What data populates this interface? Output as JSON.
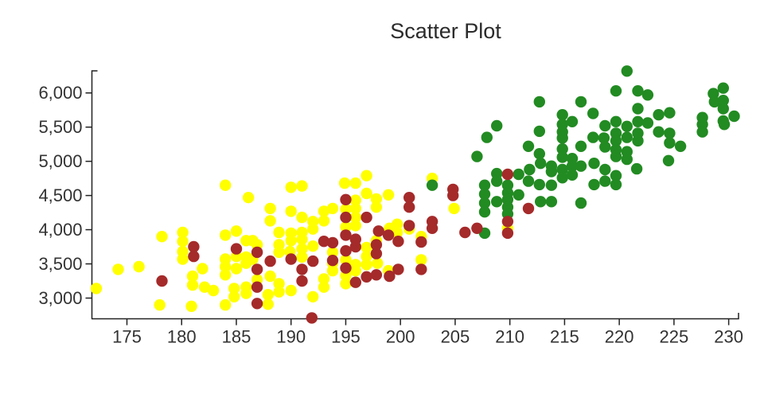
{
  "title": "Scatter Plot",
  "colors": {
    "yellow_series": "#ffff00",
    "brown_series": "#a52a2a",
    "green_series": "#228b22",
    "axis": "#222222",
    "text": "#333333"
  },
  "chart_data": {
    "type": "scatter",
    "title": "Scatter Plot",
    "xlabel": "",
    "ylabel": "",
    "grid": false,
    "legend": "none",
    "xlim": [
      171.8,
      230.9
    ],
    "ylim": [
      2697,
      6323
    ],
    "x_ticks": [
      175,
      180,
      185,
      190,
      195,
      200,
      205,
      210,
      215,
      220,
      225,
      230
    ],
    "y_ticks": [
      3000,
      3500,
      4000,
      4500,
      5000,
      5500,
      6000
    ],
    "y_tick_labels": [
      "3,000",
      "3,500",
      "4,000",
      "4,500",
      "5,000",
      "5,500",
      "6,000"
    ],
    "series": [
      {
        "name": "yellow",
        "color": "#ffff00",
        "points": [
          [
            172.2,
            3140
          ],
          [
            174.2,
            3420
          ],
          [
            176.1,
            3460
          ],
          [
            178.2,
            3900
          ],
          [
            178,
            2900
          ],
          [
            180.1,
            3960
          ],
          [
            180.1,
            3830
          ],
          [
            180.1,
            3680
          ],
          [
            180.1,
            3570
          ],
          [
            181,
            3320
          ],
          [
            181,
            3190
          ],
          [
            180.9,
            2880
          ],
          [
            181.9,
            3430
          ],
          [
            182.1,
            3160
          ],
          [
            182.9,
            3110
          ],
          [
            184,
            4650
          ],
          [
            184,
            3920
          ],
          [
            184,
            3570
          ],
          [
            184,
            3460
          ],
          [
            184,
            3340
          ],
          [
            184,
            2900
          ],
          [
            184.8,
            3140
          ],
          [
            184.8,
            3020
          ],
          [
            185,
            3980
          ],
          [
            185,
            3610
          ],
          [
            185,
            3430
          ],
          [
            185.9,
            3840
          ],
          [
            185.9,
            3600
          ],
          [
            185.9,
            3510
          ],
          [
            185.9,
            3160
          ],
          [
            185.9,
            3070
          ],
          [
            186.1,
            4470
          ],
          [
            186.5,
            3840
          ],
          [
            186.5,
            3570
          ],
          [
            186.9,
            3780
          ],
          [
            186.9,
            3270
          ],
          [
            187.9,
            3050
          ],
          [
            187.9,
            2910
          ],
          [
            188.1,
            4310
          ],
          [
            188.1,
            4130
          ],
          [
            188.1,
            3320
          ],
          [
            188.9,
            3960
          ],
          [
            188.9,
            3780
          ],
          [
            188.9,
            3670
          ],
          [
            188.9,
            3210
          ],
          [
            188.9,
            3090
          ],
          [
            189.9,
            3680
          ],
          [
            190,
            4620
          ],
          [
            190,
            4270
          ],
          [
            190,
            3950
          ],
          [
            190,
            3840
          ],
          [
            190,
            3110
          ],
          [
            191,
            4640
          ],
          [
            191,
            4180
          ],
          [
            191,
            3960
          ],
          [
            191,
            3860
          ],
          [
            191,
            3720
          ],
          [
            191,
            3600
          ],
          [
            192,
            4120
          ],
          [
            192,
            4010
          ],
          [
            192,
            3760
          ],
          [
            192,
            3020
          ],
          [
            193,
            4270
          ],
          [
            193,
            4130
          ],
          [
            193,
            3280
          ],
          [
            193,
            3160
          ],
          [
            193.8,
            4310
          ],
          [
            193.8,
            3670
          ],
          [
            193.8,
            3510
          ],
          [
            193.8,
            3400
          ],
          [
            194.9,
            4680
          ],
          [
            195,
            4300
          ],
          [
            195,
            4040
          ],
          [
            195,
            3560
          ],
          [
            195,
            3330
          ],
          [
            195,
            3210
          ],
          [
            195.9,
            4680
          ],
          [
            195.9,
            4430
          ],
          [
            195.9,
            4310
          ],
          [
            195.9,
            4180
          ],
          [
            195.9,
            4060
          ],
          [
            195.9,
            3490
          ],
          [
            195.9,
            3400
          ],
          [
            196.9,
            4790
          ],
          [
            196.9,
            4530
          ],
          [
            196.9,
            3740
          ],
          [
            196.9,
            3610
          ],
          [
            196.9,
            3490
          ],
          [
            197.8,
            4450
          ],
          [
            197.8,
            4330
          ],
          [
            197.8,
            3840
          ],
          [
            197.9,
            3510
          ],
          [
            198.9,
            4510
          ],
          [
            198.9,
            3400
          ],
          [
            199,
            4020
          ],
          [
            199.7,
            4080
          ],
          [
            199.7,
            3960
          ],
          [
            200.8,
            4010
          ],
          [
            201.9,
            3900
          ],
          [
            201.9,
            3560
          ],
          [
            202.9,
            4750
          ],
          [
            204.9,
            4310
          ],
          [
            209.8,
            4020
          ]
        ]
      },
      {
        "name": "green",
        "color": "#228b22",
        "points": [
          [
            202.9,
            4650
          ],
          [
            207,
            5070
          ],
          [
            207.7,
            4650
          ],
          [
            207.7,
            4520
          ],
          [
            207.7,
            4390
          ],
          [
            207.7,
            4260
          ],
          [
            207.7,
            3950
          ],
          [
            207.9,
            5350
          ],
          [
            208.8,
            5520
          ],
          [
            208.8,
            4820
          ],
          [
            208.8,
            4710
          ],
          [
            208.8,
            4410
          ],
          [
            209.8,
            4650
          ],
          [
            209.8,
            4540
          ],
          [
            209.8,
            4440
          ],
          [
            209.8,
            4330
          ],
          [
            209.8,
            4230
          ],
          [
            210.8,
            4810
          ],
          [
            210.8,
            4510
          ],
          [
            211.7,
            5220
          ],
          [
            211.8,
            4880
          ],
          [
            211.7,
            4710
          ],
          [
            212.7,
            5870
          ],
          [
            212.7,
            5440
          ],
          [
            212.7,
            5110
          ],
          [
            212.8,
            4970
          ],
          [
            212.7,
            4660
          ],
          [
            212.8,
            4410
          ],
          [
            213.8,
            4930
          ],
          [
            213.8,
            4850
          ],
          [
            213.8,
            4650
          ],
          [
            213.8,
            4410
          ],
          [
            214.8,
            5680
          ],
          [
            214.8,
            5540
          ],
          [
            214.8,
            5430
          ],
          [
            214.8,
            5340
          ],
          [
            214.8,
            5180
          ],
          [
            214.8,
            5060
          ],
          [
            214.8,
            4880
          ],
          [
            214.8,
            4760
          ],
          [
            215.7,
            5580
          ],
          [
            215.7,
            5040
          ],
          [
            215.7,
            4930
          ],
          [
            215.7,
            4800
          ],
          [
            216.5,
            5870
          ],
          [
            216.5,
            5220
          ],
          [
            216.5,
            4930
          ],
          [
            216.5,
            4390
          ],
          [
            217.6,
            5700
          ],
          [
            217.6,
            5350
          ],
          [
            217.7,
            4970
          ],
          [
            217.7,
            4660
          ],
          [
            218.7,
            5520
          ],
          [
            218.6,
            5340
          ],
          [
            218.7,
            5210
          ],
          [
            218.7,
            4880
          ],
          [
            218.7,
            4710
          ],
          [
            219.7,
            6030
          ],
          [
            219.7,
            5580
          ],
          [
            219.7,
            5410
          ],
          [
            219.7,
            5300
          ],
          [
            219.7,
            5170
          ],
          [
            219.7,
            5070
          ],
          [
            219.7,
            4790
          ],
          [
            219.7,
            4660
          ],
          [
            220.7,
            6320
          ],
          [
            220.7,
            5510
          ],
          [
            220.7,
            5350
          ],
          [
            220.7,
            5140
          ],
          [
            220.7,
            5030
          ],
          [
            221.6,
            4890
          ],
          [
            221.7,
            6030
          ],
          [
            221.7,
            5770
          ],
          [
            221.7,
            5580
          ],
          [
            221.7,
            5410
          ],
          [
            221.7,
            5300
          ],
          [
            222.6,
            5970
          ],
          [
            222.6,
            5560
          ],
          [
            223.6,
            5680
          ],
          [
            223.6,
            5430
          ],
          [
            224.6,
            5710
          ],
          [
            224.6,
            5410
          ],
          [
            224.6,
            5270
          ],
          [
            224.5,
            5010
          ],
          [
            225.6,
            5220
          ],
          [
            227.6,
            5640
          ],
          [
            227.6,
            5540
          ],
          [
            227.6,
            5430
          ],
          [
            228.6,
            5990
          ],
          [
            228.7,
            5870
          ],
          [
            229.5,
            6070
          ],
          [
            229.5,
            5890
          ],
          [
            229.5,
            5770
          ],
          [
            229.5,
            5590
          ],
          [
            229.6,
            5540
          ],
          [
            230.5,
            5660
          ]
        ]
      },
      {
        "name": "brown",
        "color": "#a52a2a",
        "points": [
          [
            178.2,
            3250
          ],
          [
            181.1,
            3750
          ],
          [
            181.1,
            3610
          ],
          [
            185,
            3720
          ],
          [
            186.9,
            2920
          ],
          [
            186.9,
            3670
          ],
          [
            186.9,
            3420
          ],
          [
            186.9,
            3160
          ],
          [
            188.1,
            3540
          ],
          [
            190,
            3570
          ],
          [
            191,
            3420
          ],
          [
            191,
            3250
          ],
          [
            191.9,
            2710
          ],
          [
            192,
            3540
          ],
          [
            193,
            3830
          ],
          [
            193.8,
            3810
          ],
          [
            193.8,
            3550
          ],
          [
            195,
            4440
          ],
          [
            195,
            4180
          ],
          [
            195,
            3920
          ],
          [
            195,
            3690
          ],
          [
            195,
            3440
          ],
          [
            195.9,
            3860
          ],
          [
            195.9,
            3750
          ],
          [
            195.9,
            3230
          ],
          [
            196.9,
            4180
          ],
          [
            196.9,
            3310
          ],
          [
            197.8,
            3780
          ],
          [
            197.8,
            3650
          ],
          [
            197.8,
            3340
          ],
          [
            198,
            3980
          ],
          [
            198.9,
            3920
          ],
          [
            199,
            3320
          ],
          [
            199.8,
            3830
          ],
          [
            199.8,
            3420
          ],
          [
            200.8,
            4470
          ],
          [
            200.8,
            4330
          ],
          [
            200.8,
            4060
          ],
          [
            201.9,
            3820
          ],
          [
            201.9,
            3420
          ],
          [
            202.9,
            4120
          ],
          [
            202.9,
            4020
          ],
          [
            204.8,
            4590
          ],
          [
            204.8,
            4500
          ],
          [
            205.9,
            3960
          ],
          [
            207,
            4020
          ],
          [
            209.8,
            4810
          ],
          [
            209.8,
            4120
          ],
          [
            209.8,
            3950
          ],
          [
            211.7,
            4310
          ]
        ]
      }
    ]
  }
}
